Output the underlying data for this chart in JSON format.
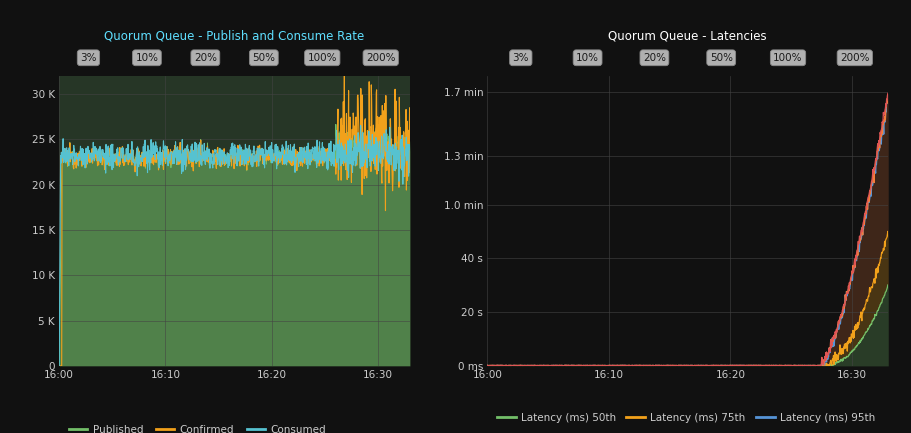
{
  "bg_color": "#111111",
  "panel_bg_left": "#263626",
  "panel_bg_right": "#111111",
  "grid_color": "#444444",
  "text_color": "#cccccc",
  "title_color_left": "#5fdfff",
  "title_color_right": "#ffffff",
  "left_title": "Quorum Queue - Publish and Consume Rate",
  "right_title": "Quorum Queue - Latencies",
  "segment_labels": [
    "3%",
    "10%",
    "20%",
    "50%",
    "100%",
    "200%"
  ],
  "seg_btn_bg": "#cccccc",
  "seg_btn_fg": "#222222",
  "left_ytick_labels": [
    "0",
    "5 K",
    "10 K",
    "15 K",
    "20 K",
    "25 K",
    "30 K"
  ],
  "left_ytick_vals": [
    0,
    5000,
    10000,
    15000,
    20000,
    25000,
    30000
  ],
  "left_ylim": [
    0,
    32000
  ],
  "right_ytick_labels": [
    "0 ms",
    "20 s",
    "40 s",
    "1.0 min",
    "1.3 min",
    "1.7 min"
  ],
  "right_ytick_vals": [
    0,
    20,
    40,
    60,
    78,
    102
  ],
  "right_ylim": [
    0,
    108
  ],
  "xtick_labels": [
    "16:00",
    "16:10",
    "16:20",
    "16:30"
  ],
  "xtick_positions": [
    0,
    600,
    1200,
    1800
  ],
  "xlim": [
    0,
    1980
  ],
  "published_color": "#73bf69",
  "confirmed_color": "#f2a11b",
  "consumed_color": "#56c2d0",
  "lat50_color": "#73bf69",
  "lat75_color": "#f2a11b",
  "lat95_color": "#5694d6",
  "lat99_color": "#f47d3b",
  "lat999_color": "#e05555"
}
